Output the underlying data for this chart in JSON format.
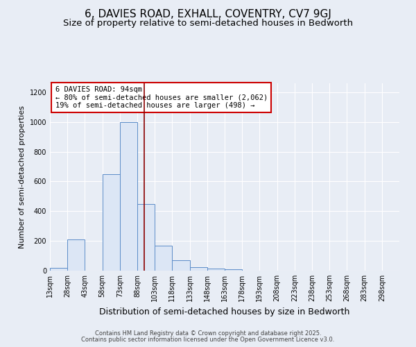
{
  "title": "6, DAVIES ROAD, EXHALL, COVENTRY, CV7 9GJ",
  "subtitle": "Size of property relative to semi-detached houses in Bedworth",
  "xlabel": "Distribution of semi-detached houses by size in Bedworth",
  "ylabel": "Number of semi-detached properties",
  "bin_edges": [
    13,
    28,
    43,
    58,
    73,
    88,
    103,
    118,
    133,
    148,
    163,
    178,
    193,
    208,
    223,
    238,
    253,
    268,
    283,
    298,
    313
  ],
  "bar_heights": [
    20,
    210,
    0,
    650,
    1000,
    450,
    170,
    70,
    25,
    15,
    10,
    0,
    0,
    0,
    0,
    0,
    0,
    0,
    0,
    0
  ],
  "bar_facecolor": "#dce6f5",
  "bar_edgecolor": "#5b8cc8",
  "property_size": 94,
  "vline_color": "#8b0000",
  "annotation_title": "6 DAVIES ROAD: 94sqm",
  "annotation_line1": "← 80% of semi-detached houses are smaller (2,062)",
  "annotation_line2": "19% of semi-detached houses are larger (498) →",
  "annotation_boxcolor": "white",
  "annotation_edgecolor": "#cc0000",
  "ylim": [
    0,
    1260
  ],
  "yticks": [
    0,
    200,
    400,
    600,
    800,
    1000,
    1200
  ],
  "bg_color": "#e8edf5",
  "grid_color": "#ffffff",
  "footer_line1": "Contains HM Land Registry data © Crown copyright and database right 2025.",
  "footer_line2": "Contains public sector information licensed under the Open Government Licence v3.0.",
  "title_fontsize": 11,
  "subtitle_fontsize": 9.5,
  "xlabel_fontsize": 9,
  "ylabel_fontsize": 8,
  "tick_fontsize": 7,
  "annotation_fontsize": 7.5,
  "footer_fontsize": 6
}
